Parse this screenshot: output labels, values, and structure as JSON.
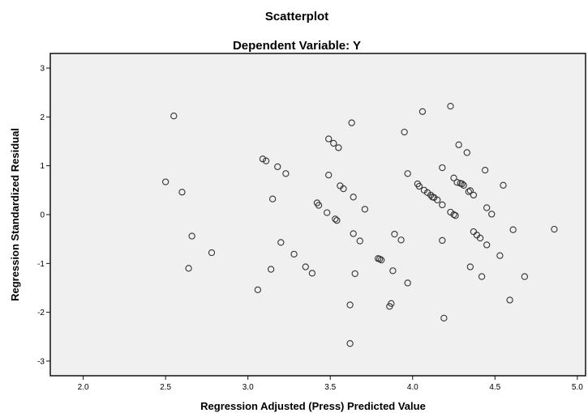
{
  "chart_data": {
    "type": "scatter",
    "title": "Scatterplot",
    "subtitle": "Dependent Variable: Y",
    "xlabel": "Regression Adjusted (Press) Predicted Value",
    "ylabel": "Regression Standardized Residual",
    "xlim": [
      1.8,
      5.05
    ],
    "ylim": [
      -3.3,
      3.3
    ],
    "xticks": [
      "2.0",
      "2.5",
      "3.0",
      "3.5",
      "4.0",
      "4.5",
      "5.0"
    ],
    "yticks": [
      "3",
      "2",
      "1",
      "0",
      "-1",
      "-2",
      "-3"
    ],
    "grid": false,
    "legend": "none",
    "colors": {
      "plot_background": "#f0f0f0",
      "marker_stroke": "#333333"
    },
    "points": [
      {
        "x": 2.5,
        "y": 0.67
      },
      {
        "x": 2.55,
        "y": 2.02
      },
      {
        "x": 2.6,
        "y": 0.46
      },
      {
        "x": 2.64,
        "y": -1.1
      },
      {
        "x": 2.66,
        "y": -0.44
      },
      {
        "x": 2.78,
        "y": -0.78
      },
      {
        "x": 3.06,
        "y": -1.54
      },
      {
        "x": 3.09,
        "y": 1.14
      },
      {
        "x": 3.11,
        "y": 1.1
      },
      {
        "x": 3.14,
        "y": -1.12
      },
      {
        "x": 3.15,
        "y": 0.32
      },
      {
        "x": 3.18,
        "y": 0.98
      },
      {
        "x": 3.2,
        "y": -0.57
      },
      {
        "x": 3.23,
        "y": 0.84
      },
      {
        "x": 3.28,
        "y": -0.81
      },
      {
        "x": 3.35,
        "y": -1.07
      },
      {
        "x": 3.39,
        "y": -1.2
      },
      {
        "x": 3.42,
        "y": 0.24
      },
      {
        "x": 3.43,
        "y": 0.19
      },
      {
        "x": 3.48,
        "y": 0.04
      },
      {
        "x": 3.49,
        "y": 0.81
      },
      {
        "x": 3.49,
        "y": 1.55
      },
      {
        "x": 3.52,
        "y": 1.46
      },
      {
        "x": 3.53,
        "y": -0.09
      },
      {
        "x": 3.54,
        "y": -0.12
      },
      {
        "x": 3.55,
        "y": 1.37
      },
      {
        "x": 3.56,
        "y": 0.59
      },
      {
        "x": 3.58,
        "y": 0.53
      },
      {
        "x": 3.62,
        "y": -1.85
      },
      {
        "x": 3.62,
        "y": -2.64
      },
      {
        "x": 3.63,
        "y": 1.88
      },
      {
        "x": 3.64,
        "y": 0.36
      },
      {
        "x": 3.64,
        "y": -0.39
      },
      {
        "x": 3.65,
        "y": -1.21
      },
      {
        "x": 3.68,
        "y": -0.54
      },
      {
        "x": 3.71,
        "y": 0.11
      },
      {
        "x": 3.79,
        "y": -0.9
      },
      {
        "x": 3.8,
        "y": -0.91
      },
      {
        "x": 3.81,
        "y": -0.93
      },
      {
        "x": 3.86,
        "y": -1.88
      },
      {
        "x": 3.87,
        "y": -1.82
      },
      {
        "x": 3.88,
        "y": -1.15
      },
      {
        "x": 3.89,
        "y": -0.4
      },
      {
        "x": 3.93,
        "y": -0.52
      },
      {
        "x": 3.95,
        "y": 1.69
      },
      {
        "x": 3.97,
        "y": 0.84
      },
      {
        "x": 3.97,
        "y": -1.4
      },
      {
        "x": 4.03,
        "y": 0.63
      },
      {
        "x": 4.04,
        "y": 0.58
      },
      {
        "x": 4.06,
        "y": 2.11
      },
      {
        "x": 4.07,
        "y": 0.5
      },
      {
        "x": 4.09,
        "y": 0.45
      },
      {
        "x": 4.11,
        "y": 0.4
      },
      {
        "x": 4.12,
        "y": 0.36
      },
      {
        "x": 4.13,
        "y": 0.35
      },
      {
        "x": 4.15,
        "y": 0.3
      },
      {
        "x": 4.18,
        "y": 0.96
      },
      {
        "x": 4.18,
        "y": 0.2
      },
      {
        "x": 4.18,
        "y": -0.53
      },
      {
        "x": 4.19,
        "y": -2.12
      },
      {
        "x": 4.23,
        "y": 2.22
      },
      {
        "x": 4.23,
        "y": 0.05
      },
      {
        "x": 4.25,
        "y": 0.0
      },
      {
        "x": 4.26,
        "y": -0.02
      },
      {
        "x": 4.25,
        "y": 0.75
      },
      {
        "x": 4.27,
        "y": 0.66
      },
      {
        "x": 4.28,
        "y": 1.43
      },
      {
        "x": 4.29,
        "y": 0.64
      },
      {
        "x": 4.3,
        "y": 0.63
      },
      {
        "x": 4.31,
        "y": 0.6
      },
      {
        "x": 4.33,
        "y": 1.27
      },
      {
        "x": 4.34,
        "y": 0.47
      },
      {
        "x": 4.35,
        "y": 0.49
      },
      {
        "x": 4.35,
        "y": -1.07
      },
      {
        "x": 4.37,
        "y": 0.4
      },
      {
        "x": 4.37,
        "y": -0.35
      },
      {
        "x": 4.39,
        "y": -0.42
      },
      {
        "x": 4.41,
        "y": -0.48
      },
      {
        "x": 4.42,
        "y": -1.27
      },
      {
        "x": 4.44,
        "y": 0.91
      },
      {
        "x": 4.45,
        "y": 0.14
      },
      {
        "x": 4.45,
        "y": -0.62
      },
      {
        "x": 4.48,
        "y": 0.01
      },
      {
        "x": 4.53,
        "y": -0.84
      },
      {
        "x": 4.55,
        "y": 0.6
      },
      {
        "x": 4.59,
        "y": -1.75
      },
      {
        "x": 4.61,
        "y": -0.31
      },
      {
        "x": 4.68,
        "y": -1.27
      },
      {
        "x": 4.86,
        "y": -0.3
      }
    ]
  }
}
